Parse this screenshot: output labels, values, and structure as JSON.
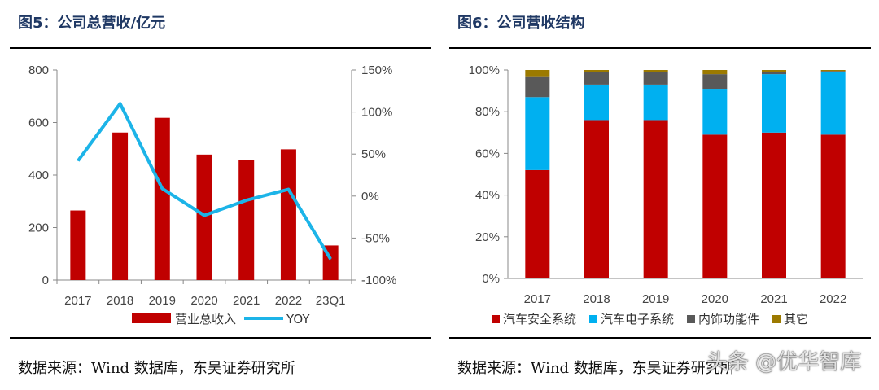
{
  "left_panel": {
    "title": "图5：公司总营收/亿元",
    "source": "数据来源：Wind 数据库，东吴证券研究所"
  },
  "right_panel": {
    "title": "图6：公司营收结构",
    "source": "数据来源：Wind 数据库，东吴证券研究所"
  },
  "watermark": "头条 @优华智库",
  "chart_data": [
    {
      "type": "bar",
      "title": "图5：公司总营收/亿元",
      "categories": [
        "2017",
        "2018",
        "2019",
        "2020",
        "2021",
        "2022",
        "23Q1"
      ],
      "series": [
        {
          "name": "营业总收入",
          "type": "bar",
          "axis": "left",
          "values": [
            265,
            562,
            618,
            478,
            457,
            498,
            132
          ],
          "color": "#c00000"
        },
        {
          "name": "YOY",
          "type": "line",
          "axis": "right",
          "values": [
            42,
            110,
            9,
            -23,
            -5,
            8,
            -75
          ],
          "color": "#1cb4e8"
        }
      ],
      "ylim_left": [
        0,
        800
      ],
      "yticks_left": [
        "0",
        "200",
        "400",
        "600",
        "800"
      ],
      "ylim_right": [
        -100,
        150
      ],
      "yticks_right": [
        "-100%",
        "-50%",
        "0%",
        "50%",
        "100%",
        "150%"
      ],
      "legend": "bottom"
    },
    {
      "type": "bar",
      "stacked": true,
      "title": "图6：公司营收结构",
      "categories": [
        "2017",
        "2018",
        "2019",
        "2020",
        "2021",
        "2022"
      ],
      "series": [
        {
          "name": "汽车安全系统",
          "values": [
            52,
            76,
            76,
            69,
            70,
            69
          ],
          "color": "#c00000"
        },
        {
          "name": "汽车电子系统",
          "values": [
            35,
            17,
            17,
            22,
            28,
            30
          ],
          "color": "#00b0f0"
        },
        {
          "name": "内饰功能件",
          "values": [
            10,
            6,
            6,
            7,
            1,
            0.5
          ],
          "color": "#595959"
        },
        {
          "name": "其它",
          "values": [
            3,
            1,
            1,
            2,
            1,
            0.5
          ],
          "color": "#9c7a00"
        }
      ],
      "ylim": [
        0,
        100
      ],
      "yticks": [
        "0%",
        "20%",
        "40%",
        "60%",
        "80%",
        "100%"
      ],
      "legend": "bottom"
    }
  ]
}
